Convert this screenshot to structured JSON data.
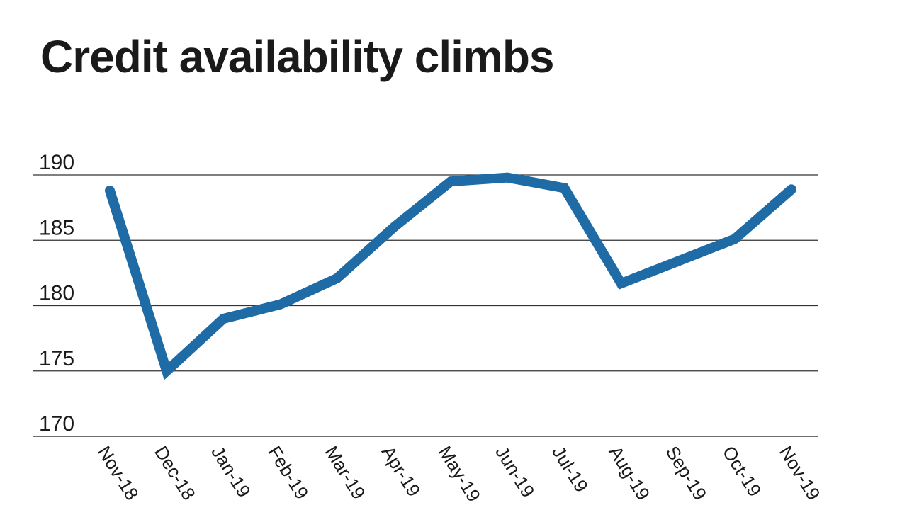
{
  "page": {
    "background_color": "#ffffff"
  },
  "chart_data": {
    "type": "line",
    "title": "Credit availability climbs",
    "categories": [
      "Nov-18",
      "Dec-18",
      "Jan-19",
      "Feb-19",
      "Mar-19",
      "Apr-19",
      "May-19",
      "Jun-19",
      "Jul-19",
      "Aug-19",
      "Sep-19",
      "Oct-19",
      "Nov-19"
    ],
    "values": [
      188.8,
      175.0,
      179.0,
      180.1,
      182.1,
      186.0,
      189.5,
      189.8,
      189.0,
      181.7,
      183.4,
      185.1,
      188.9
    ],
    "xlabel": "",
    "ylabel": "",
    "ylim": [
      170,
      190
    ],
    "yticks": [
      170,
      175,
      180,
      185,
      190
    ],
    "grid": "horizontal",
    "legend": "none",
    "x_label_rotation_deg": 58,
    "line_color": "#1F6BA5",
    "gridline_color": "#333333",
    "axis_line_color": "#707070",
    "text_color": "#1a1a1a",
    "title_color": "#1a1a1a"
  }
}
